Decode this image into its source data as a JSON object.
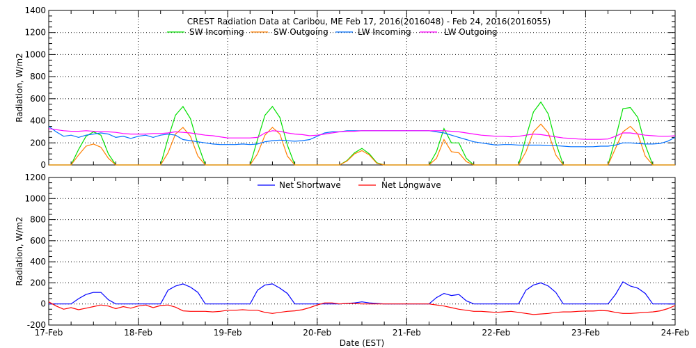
{
  "chart_data": [
    {
      "type": "line",
      "title": "CREST Radiation Data at Caribou, ME   Feb 17, 2016(2016048) - Feb 24, 2016(2016055)",
      "xlabel": "",
      "ylabel": "Radiation, W/m2",
      "ylim": [
        0,
        1400
      ],
      "yticks": [
        "0",
        "200",
        "400",
        "600",
        "800",
        "1000",
        "1200",
        "1400"
      ],
      "xlim_days": [
        0,
        7
      ],
      "x_step_hours": 2,
      "grid": true,
      "legend_placement": "top",
      "series": [
        {
          "name": "SW Incoming",
          "color": "#00e000",
          "values": [
            0,
            0,
            0,
            0,
            140,
            260,
            300,
            270,
            100,
            0,
            0,
            0,
            0,
            0,
            0,
            0,
            240,
            450,
            530,
            420,
            190,
            0,
            0,
            0,
            0,
            0,
            0,
            0,
            230,
            450,
            530,
            430,
            180,
            0,
            0,
            0,
            0,
            0,
            0,
            0,
            40,
            110,
            150,
            100,
            20,
            0,
            0,
            0,
            0,
            0,
            0,
            0,
            120,
            330,
            200,
            200,
            60,
            0,
            0,
            0,
            0,
            0,
            0,
            0,
            250,
            480,
            570,
            460,
            200,
            0,
            0,
            0,
            0,
            0,
            0,
            0,
            240,
            510,
            520,
            430,
            180,
            0,
            0,
            0,
            0
          ]
        },
        {
          "name": "SW Outgoing",
          "color": "#ff7f00",
          "values": [
            0,
            0,
            0,
            0,
            90,
            170,
            190,
            160,
            60,
            0,
            0,
            0,
            0,
            0,
            0,
            0,
            110,
            280,
            340,
            260,
            80,
            0,
            0,
            0,
            0,
            0,
            0,
            0,
            100,
            270,
            340,
            280,
            80,
            0,
            0,
            0,
            0,
            0,
            0,
            0,
            35,
            100,
            130,
            90,
            15,
            0,
            0,
            0,
            0,
            0,
            0,
            0,
            60,
            230,
            120,
            110,
            30,
            0,
            0,
            0,
            0,
            0,
            0,
            0,
            120,
            300,
            370,
            290,
            90,
            0,
            0,
            0,
            0,
            0,
            0,
            0,
            150,
            300,
            350,
            280,
            80,
            0,
            0,
            0,
            0
          ]
        },
        {
          "name": "LW Incoming",
          "color": "#0070ff",
          "values": [
            350,
            300,
            260,
            270,
            250,
            270,
            280,
            290,
            280,
            250,
            260,
            240,
            260,
            270,
            250,
            270,
            280,
            270,
            230,
            220,
            210,
            200,
            190,
            185,
            185,
            185,
            190,
            185,
            190,
            210,
            220,
            225,
            220,
            215,
            220,
            230,
            260,
            290,
            300,
            300,
            310,
            310,
            310,
            310,
            310,
            310,
            310,
            310,
            310,
            310,
            310,
            310,
            300,
            290,
            270,
            250,
            230,
            210,
            200,
            190,
            180,
            185,
            185,
            180,
            180,
            180,
            180,
            175,
            175,
            170,
            165,
            165,
            165,
            165,
            170,
            170,
            180,
            200,
            200,
            195,
            190,
            190,
            195,
            215,
            250
          ]
        },
        {
          "name": "LW Outgoing",
          "color": "#ff00ff",
          "values": [
            330,
            320,
            310,
            305,
            305,
            310,
            305,
            300,
            300,
            295,
            285,
            280,
            280,
            280,
            285,
            285,
            290,
            300,
            295,
            290,
            280,
            270,
            265,
            255,
            245,
            245,
            245,
            245,
            250,
            290,
            310,
            305,
            290,
            280,
            275,
            265,
            270,
            280,
            290,
            300,
            305,
            305,
            310,
            310,
            310,
            310,
            310,
            310,
            310,
            310,
            310,
            310,
            310,
            310,
            305,
            300,
            290,
            280,
            270,
            265,
            260,
            260,
            255,
            260,
            270,
            280,
            275,
            265,
            255,
            245,
            240,
            235,
            232,
            232,
            232,
            235,
            260,
            290,
            290,
            280,
            270,
            265,
            260,
            260,
            265
          ]
        }
      ]
    },
    {
      "type": "line",
      "xlabel": "Date (EST)",
      "ylabel": "Radiation, W/m2",
      "ylim": [
        -200,
        1200
      ],
      "yticks": [
        "-200",
        "0",
        "200",
        "400",
        "600",
        "800",
        "1000",
        "1200"
      ],
      "xticks": [
        "17-Feb",
        "18-Feb",
        "19-Feb",
        "20-Feb",
        "21-Feb",
        "22-Feb",
        "23-Feb",
        "24-Feb"
      ],
      "xlim_days": [
        0,
        7
      ],
      "x_step_hours": 2,
      "grid": true,
      "legend_placement": "top",
      "series": [
        {
          "name": "Net Shortwave",
          "color": "#0000ff",
          "values": [
            0,
            0,
            0,
            0,
            50,
            90,
            110,
            110,
            40,
            0,
            0,
            0,
            0,
            0,
            0,
            0,
            130,
            170,
            190,
            160,
            110,
            0,
            0,
            0,
            0,
            0,
            0,
            0,
            130,
            180,
            190,
            150,
            100,
            0,
            0,
            0,
            0,
            0,
            0,
            0,
            5,
            10,
            20,
            10,
            5,
            0,
            0,
            0,
            0,
            0,
            0,
            0,
            60,
            100,
            80,
            90,
            30,
            0,
            0,
            0,
            0,
            0,
            0,
            0,
            130,
            180,
            200,
            170,
            110,
            0,
            0,
            0,
            0,
            0,
            0,
            0,
            90,
            210,
            170,
            150,
            100,
            0,
            0,
            0,
            0
          ]
        },
        {
          "name": "Net Longwave",
          "color": "#ff0000",
          "values": [
            20,
            -20,
            -50,
            -35,
            -55,
            -40,
            -25,
            -10,
            -20,
            -45,
            -25,
            -40,
            -20,
            -10,
            -35,
            -15,
            -10,
            -30,
            -65,
            -70,
            -70,
            -70,
            -75,
            -70,
            -60,
            -60,
            -55,
            -60,
            -60,
            -80,
            -90,
            -80,
            -70,
            -65,
            -55,
            -35,
            -10,
            10,
            10,
            0,
            5,
            5,
            0,
            0,
            0,
            0,
            0,
            0,
            0,
            0,
            0,
            0,
            -10,
            -20,
            -35,
            -50,
            -60,
            -70,
            -70,
            -75,
            -80,
            -75,
            -70,
            -80,
            -90,
            -100,
            -95,
            -90,
            -80,
            -75,
            -75,
            -70,
            -67,
            -67,
            -62,
            -65,
            -80,
            -90,
            -90,
            -85,
            -80,
            -75,
            -65,
            -45,
            -15
          ]
        }
      ]
    }
  ]
}
